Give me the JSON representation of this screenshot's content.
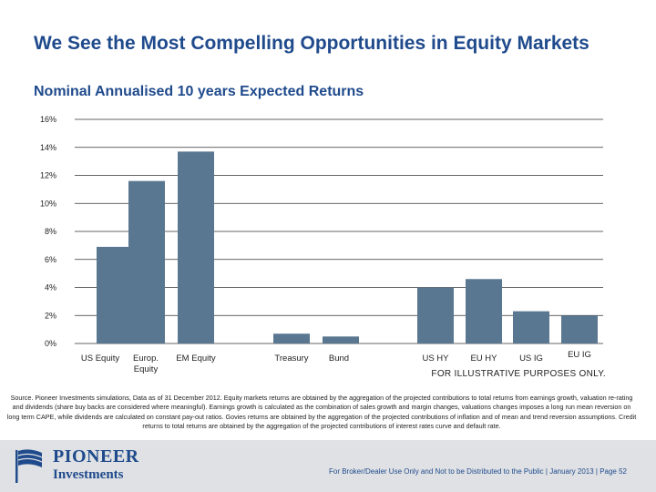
{
  "slide": {
    "title": "We See the Most Compelling Opportunities in Equity Markets",
    "subtitle": "Nominal Annualised 10 years Expected Returns",
    "note": "FOR ILLUSTRATIVE PURPOSES ONLY.",
    "source": "Source. Pioneer Investments simulations, Data as of 31 December 2012. Equity markets returns are obtained by the aggregation of the projected contributions to total returns from earnings growth, valuation re-rating and dividends (share buy backs are considered where meaningful). Earnings growth is calculated as the combination of sales growth and margin changes, valuations changes imposes a long run mean reversion on long term CAPE, while dividends are calculated on constant pay-out ratios. Govies returns are obtained by the aggregation of the projected contributions of inflation and of mean and trend reversion assumptions. Credit returns to total returns are obtained by the aggregation of the projected contributions of interest rates curve and default rate."
  },
  "footer": {
    "logo_name": "PIONEER",
    "logo_sub": "Investments",
    "text": "For Broker/Dealer Use Only and Not to be Distributed to the Public | January 2013 | Page 52"
  },
  "colors": {
    "bar": "#5a7791",
    "grid": "#333333",
    "title": "#1f4a8c"
  },
  "chart_data": {
    "type": "bar",
    "title": "Nominal Annualised 10 years Expected Returns",
    "xlabel": "",
    "ylabel": "",
    "ylim": [
      0,
      16
    ],
    "yticks": [
      0,
      2,
      4,
      6,
      8,
      10,
      12,
      14,
      16
    ],
    "ytick_labels": [
      "0%",
      "2%",
      "4%",
      "6%",
      "8%",
      "10%",
      "12%",
      "14%",
      "16%"
    ],
    "grid": true,
    "categories": [
      "US Equity",
      "Europ. Equity",
      "EM Equity",
      "Treasury",
      "Bund",
      "US HY",
      "EU HY",
      "US IG",
      "EU IG"
    ],
    "values": [
      6.9,
      11.6,
      13.7,
      0.7,
      0.5,
      4.0,
      4.6,
      2.3,
      2.0
    ]
  }
}
